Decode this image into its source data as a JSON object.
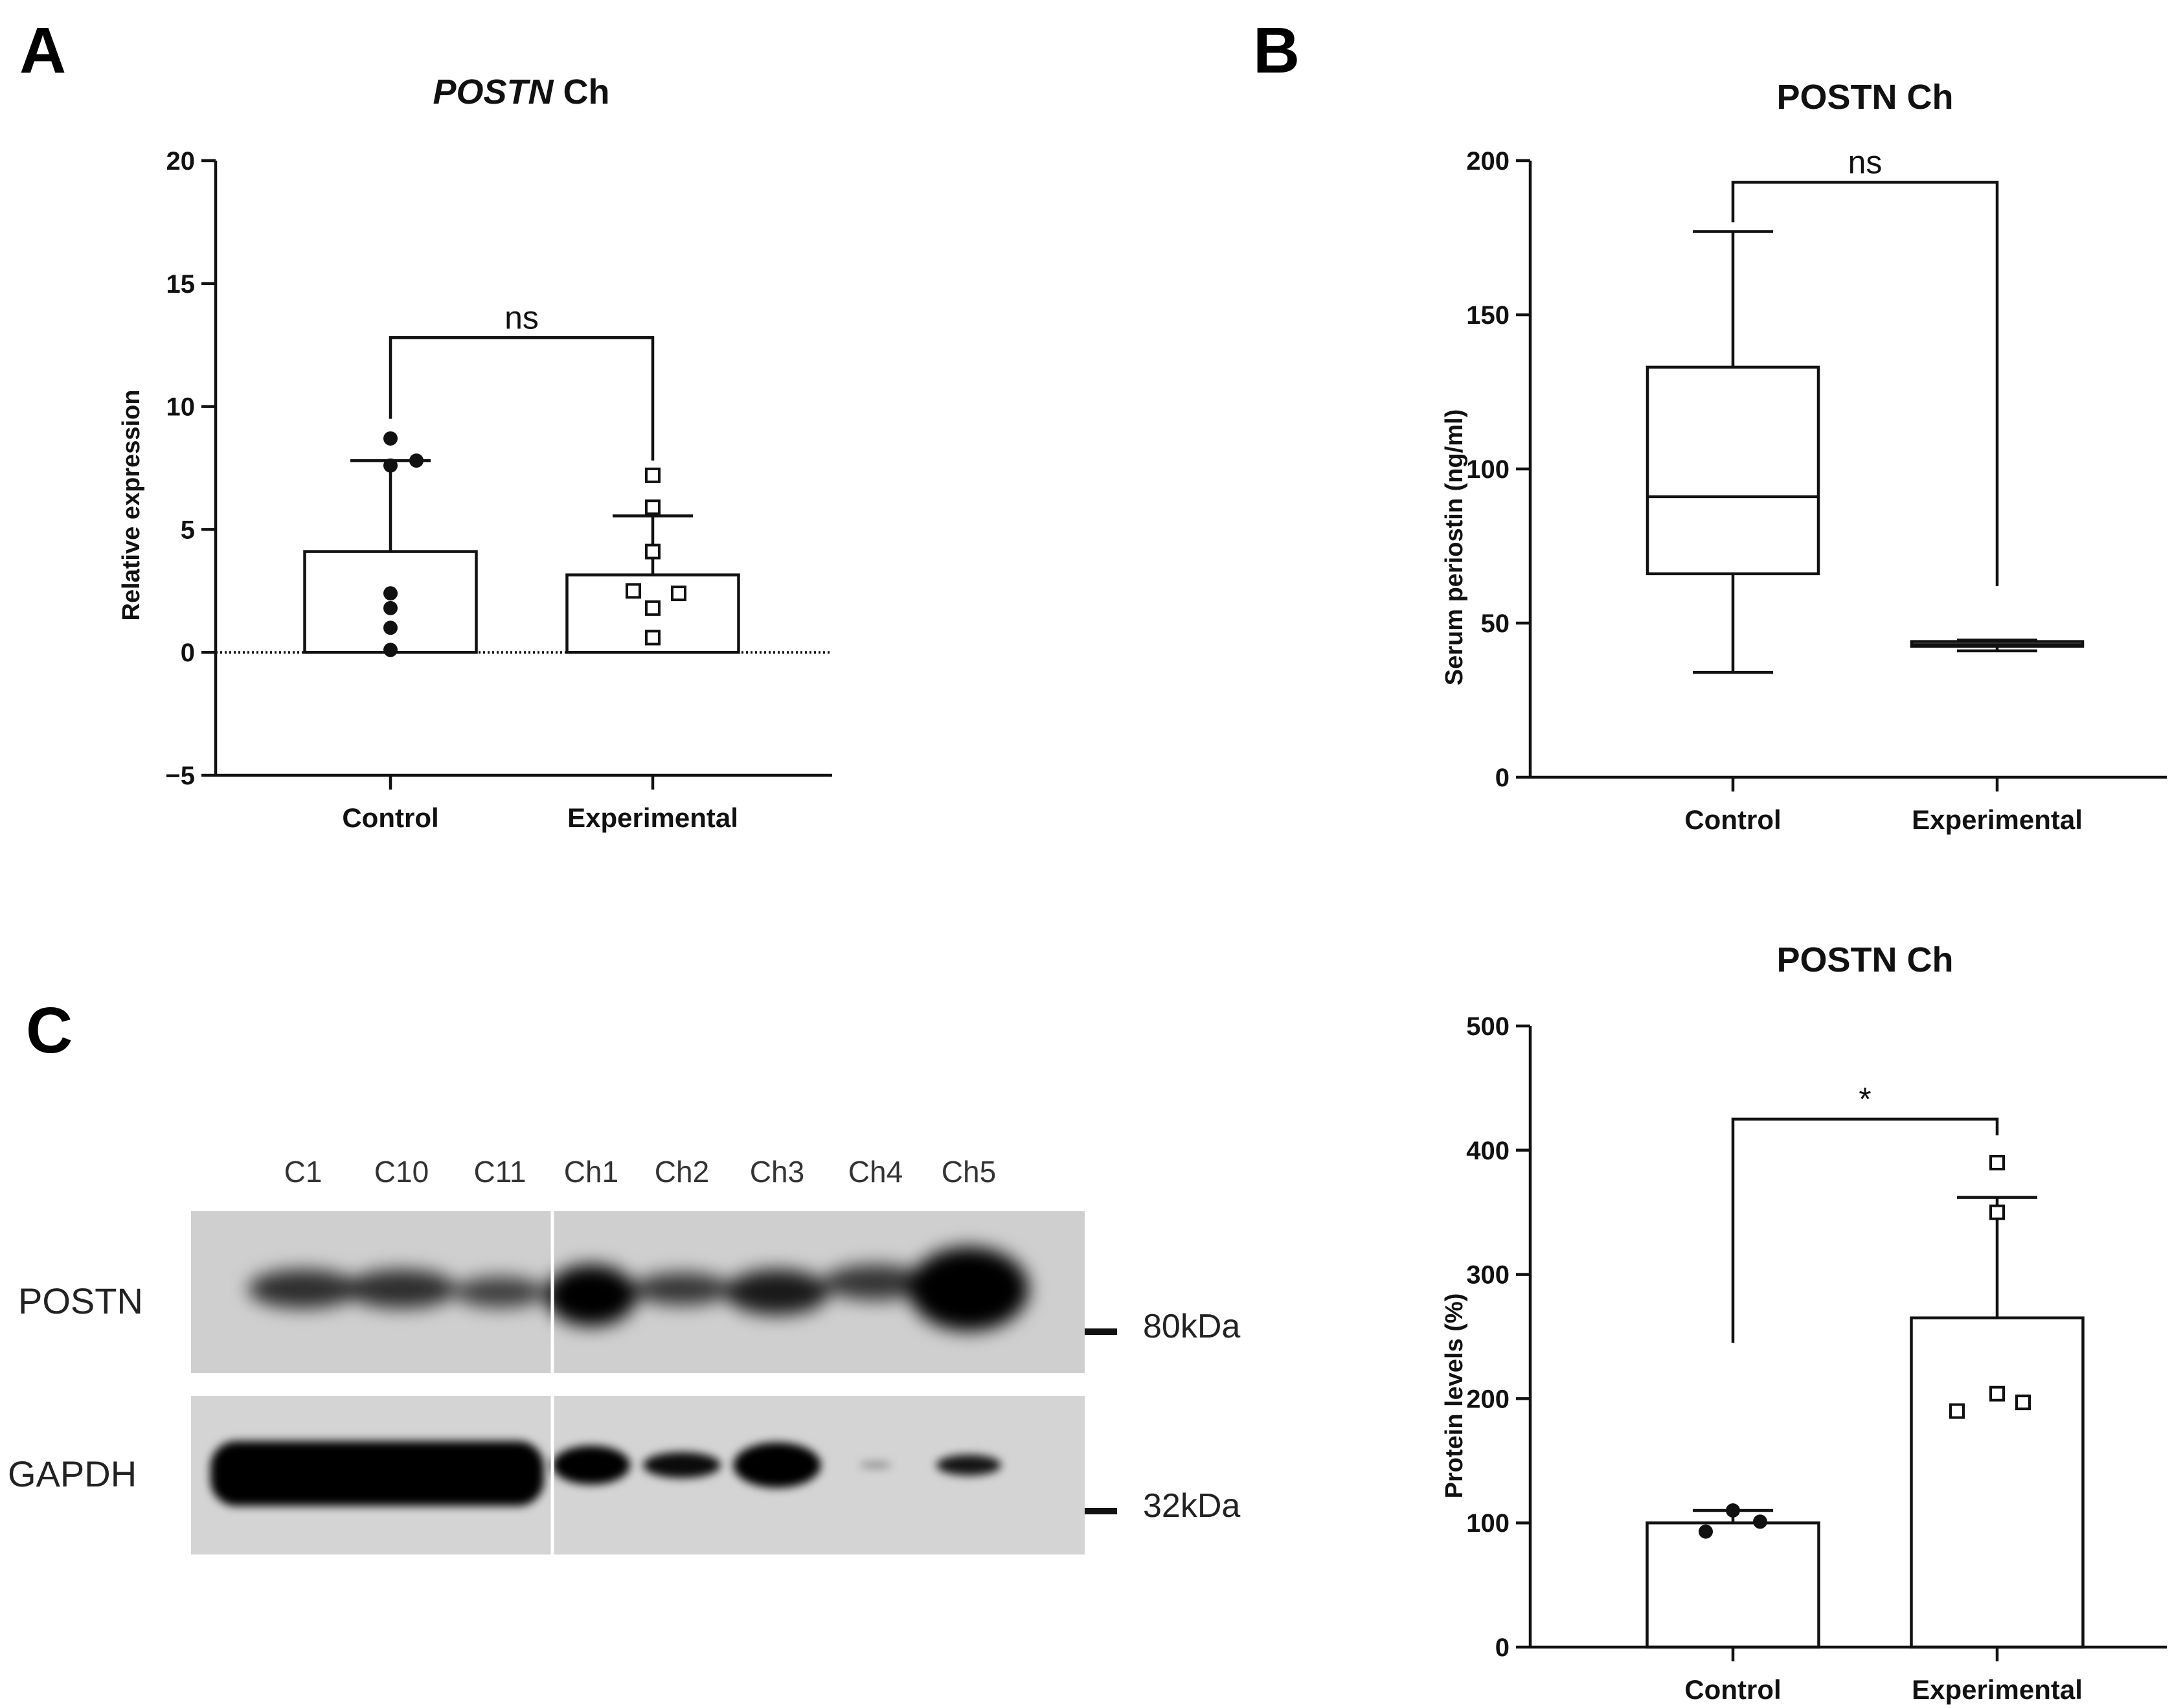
{
  "panel_letters": {
    "a": "A",
    "b": "B",
    "c": "C"
  },
  "chart_data": [
    {
      "id": "A",
      "type": "bar",
      "title_italic": "POSTN",
      "title_rest": " Ch",
      "ylabel": "Relative expression",
      "xlabel": "",
      "ylim": [
        -5,
        20
      ],
      "yticks": [
        -5,
        0,
        5,
        10,
        15,
        20
      ],
      "ytick_labels": [
        "−5",
        "0",
        "5",
        "10",
        "15",
        "20"
      ],
      "grid": false,
      "categories": [
        "Control",
        "Experimental"
      ],
      "values": [
        4.1,
        3.15
      ],
      "error_upper": [
        7.8,
        5.55
      ],
      "points": [
        [
          8.7,
          7.8,
          7.6,
          2.4,
          1.8,
          1.0,
          0.1
        ],
        [
          7.2,
          5.9,
          4.1,
          2.5,
          2.4,
          1.8,
          0.6
        ]
      ],
      "markers": [
        "filled-circle",
        "open-square"
      ],
      "significance": {
        "label": "ns",
        "between": [
          0,
          1
        ],
        "y": 12.8
      }
    },
    {
      "id": "B",
      "type": "box",
      "title": "POSTN Ch",
      "ylabel": "Serum periostin (ng/ml)",
      "xlabel": "",
      "ylim": [
        0,
        200
      ],
      "yticks": [
        0,
        50,
        100,
        150,
        200
      ],
      "ytick_labels": [
        "0",
        "50",
        "100",
        "150",
        "200"
      ],
      "grid": false,
      "categories": [
        "Control",
        "Experimental"
      ],
      "boxes": [
        {
          "min": 34,
          "q1": 66,
          "median": 91,
          "q3": 133,
          "max": 177
        },
        {
          "min": 41,
          "q1": 42.5,
          "median": 43,
          "q3": 44,
          "max": 44.5
        }
      ],
      "significance": {
        "label": "ns",
        "between": [
          0,
          1
        ],
        "y": 193,
        "left_drop": 180,
        "right_drop": 62
      }
    },
    {
      "id": "C-quant",
      "type": "bar",
      "title": "POSTN Ch",
      "ylabel": "Protein levels (%)",
      "xlabel": "",
      "ylim": [
        0,
        500
      ],
      "yticks": [
        0,
        100,
        200,
        300,
        400,
        500
      ],
      "ytick_labels": [
        "0",
        "100",
        "200",
        "300",
        "400",
        "500"
      ],
      "grid": false,
      "categories": [
        "Control",
        "Experimental"
      ],
      "values": [
        100,
        265
      ],
      "error_upper": [
        110,
        362
      ],
      "points": [
        [
          110,
          93,
          101
        ],
        [
          390,
          350,
          204,
          190,
          197
        ]
      ],
      "markers": [
        "filled-circle",
        "open-square"
      ],
      "significance": {
        "label": "*",
        "between": [
          0,
          1
        ],
        "y": 425,
        "left_drop": 245,
        "right_drop": 412
      }
    }
  ],
  "western_blot": {
    "lanes": [
      "C1",
      "C10",
      "C11",
      "Ch1",
      "Ch2",
      "Ch3",
      "Ch4",
      "Ch5"
    ],
    "rows": [
      {
        "protein": "POSTN",
        "marker": "80kDa"
      },
      {
        "protein": "GAPDH",
        "marker": "32kDa"
      }
    ]
  }
}
